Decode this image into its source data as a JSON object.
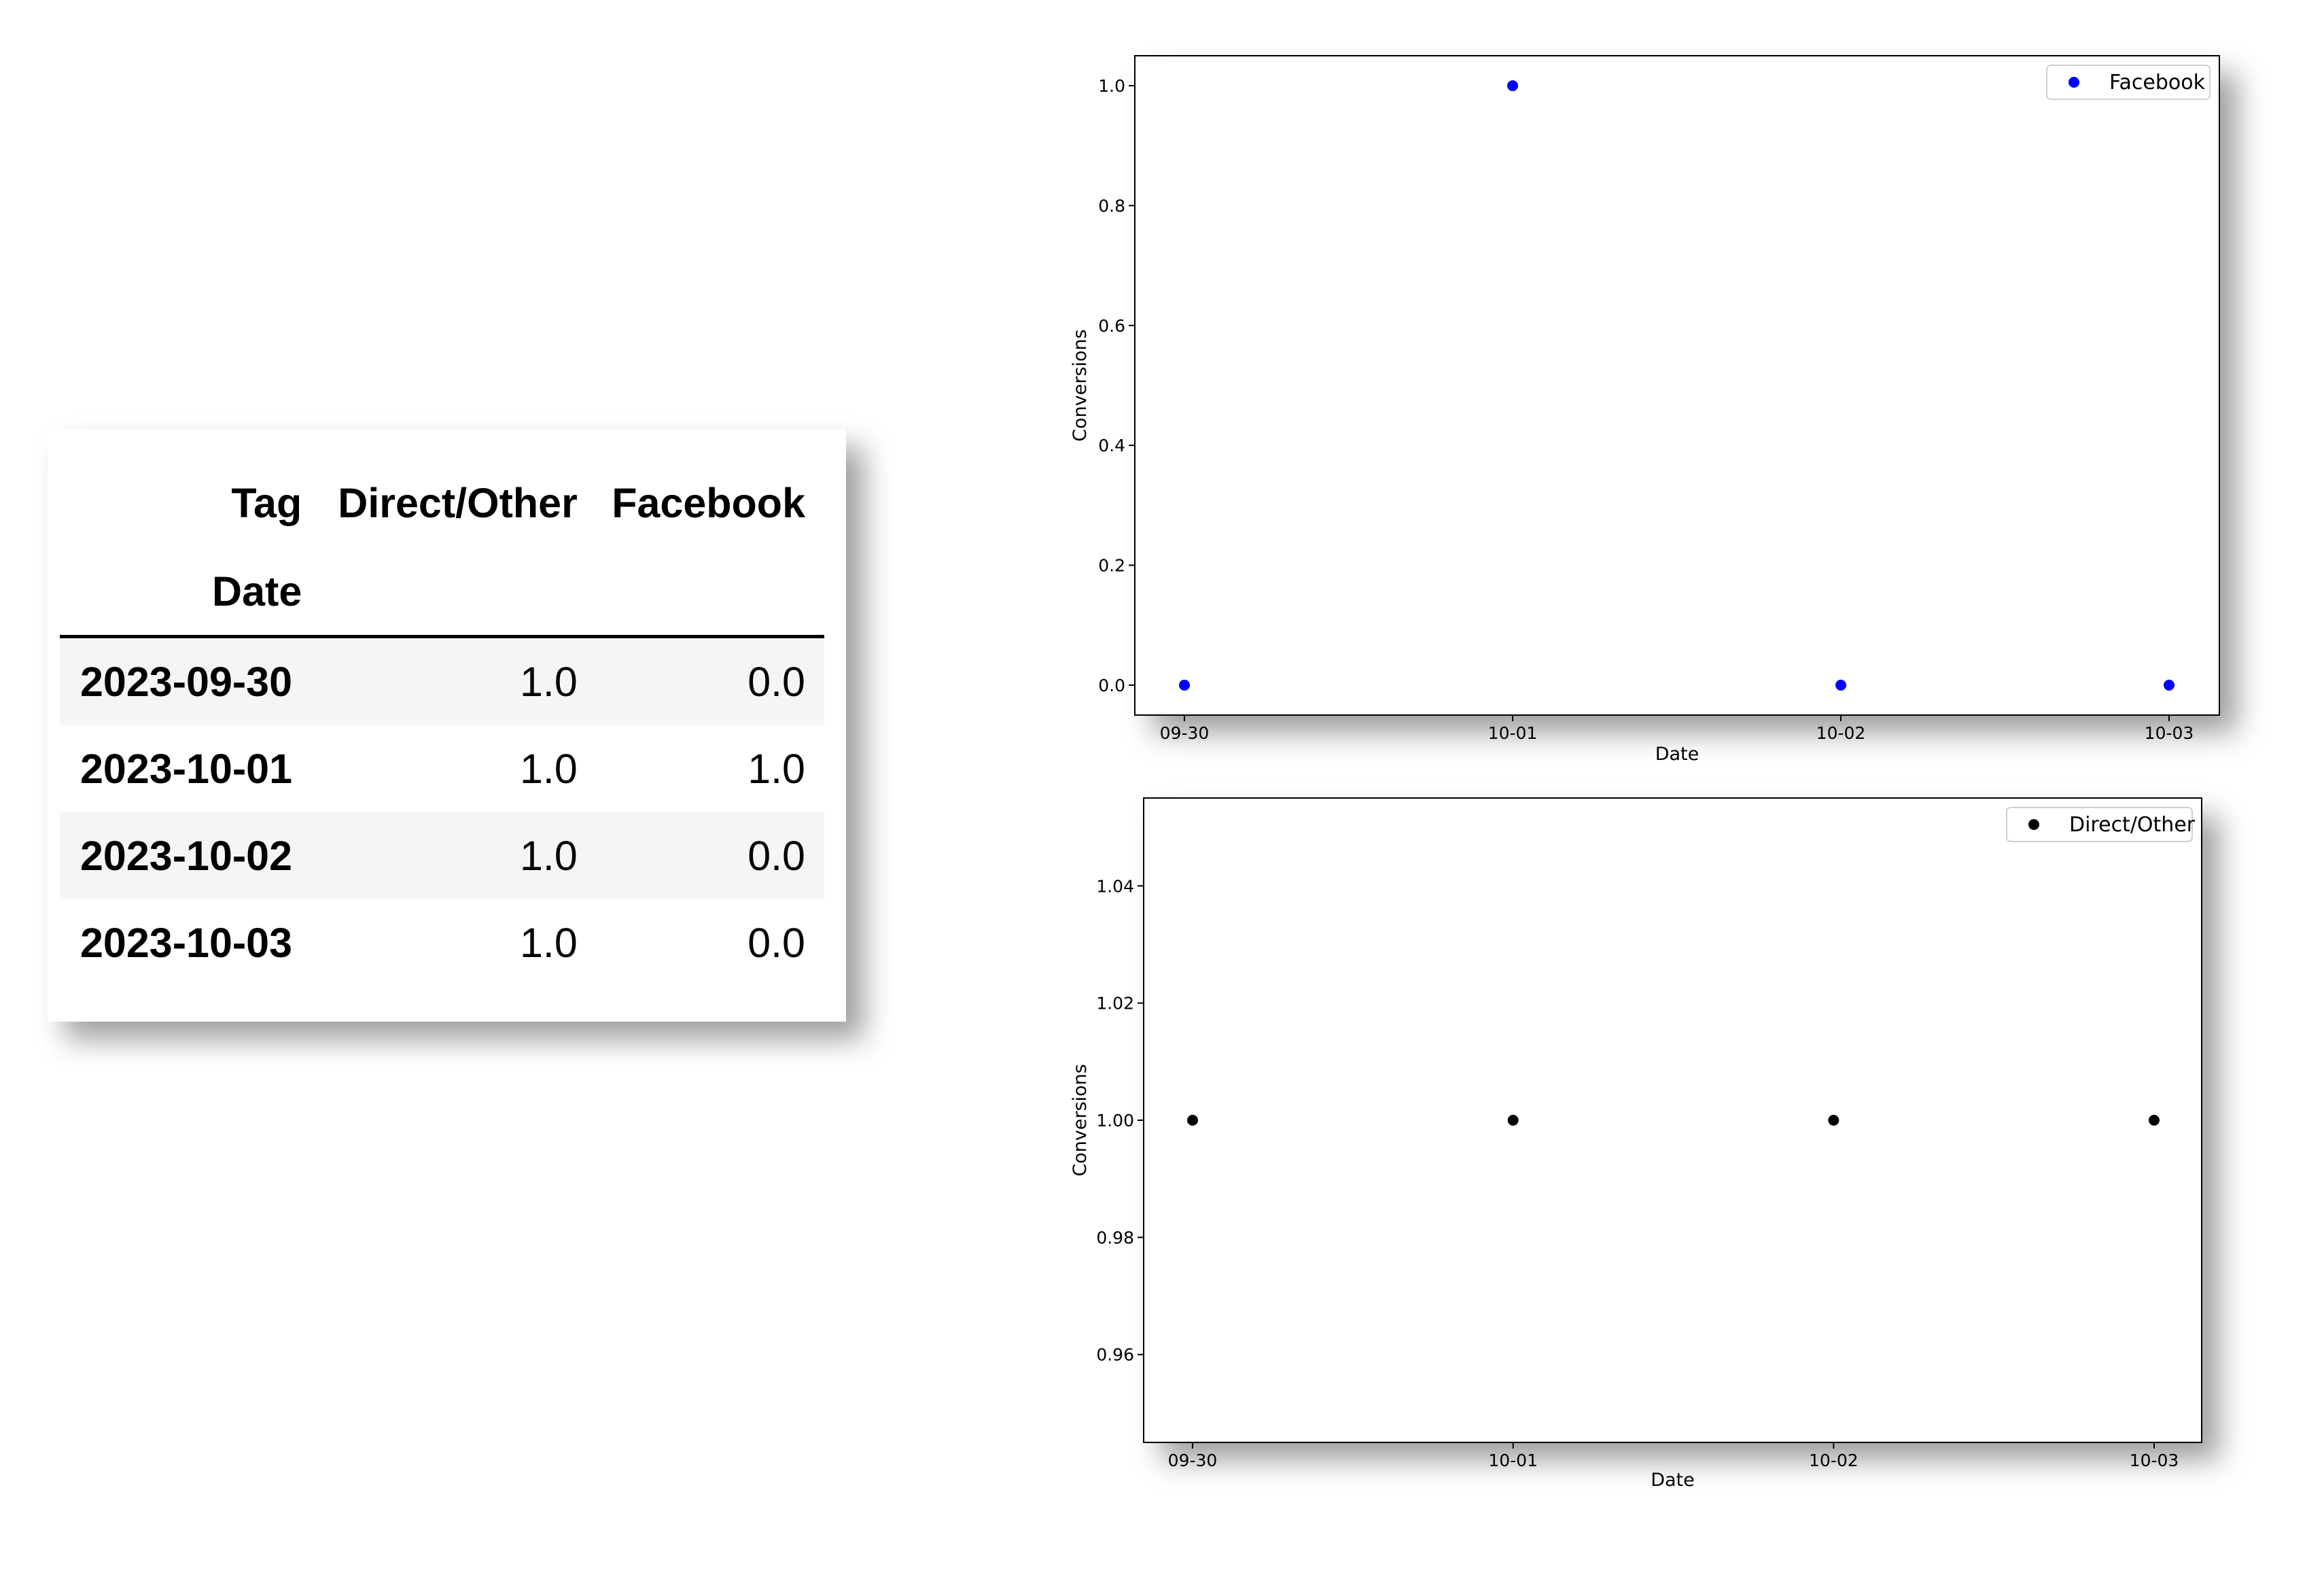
{
  "table": {
    "header_row1": [
      "Tag",
      "Direct/Other",
      "Facebook"
    ],
    "header_row2": [
      "Date",
      "",
      ""
    ],
    "rows": [
      {
        "date": "2023-09-30",
        "direct_other": "1.0",
        "facebook": "0.0"
      },
      {
        "date": "2023-10-01",
        "direct_other": "1.0",
        "facebook": "1.0"
      },
      {
        "date": "2023-10-02",
        "direct_other": "1.0",
        "facebook": "0.0"
      },
      {
        "date": "2023-10-03",
        "direct_other": "1.0",
        "facebook": "0.0"
      }
    ]
  },
  "chart_data": [
    {
      "type": "scatter",
      "x": [
        "09-30",
        "10-01",
        "10-02",
        "10-03"
      ],
      "series": [
        {
          "name": "Facebook",
          "values": [
            0.0,
            1.0,
            0.0,
            0.0
          ],
          "color": "#0000ff"
        }
      ],
      "xlabel": "Date",
      "ylabel": "Conversions",
      "ylim": [
        -0.05,
        1.05
      ],
      "yticks": [
        "0.0",
        "0.2",
        "0.4",
        "0.6",
        "0.8",
        "1.0"
      ],
      "legend": "top-right",
      "grid": false
    },
    {
      "type": "scatter",
      "x": [
        "09-30",
        "10-01",
        "10-02",
        "10-03"
      ],
      "series": [
        {
          "name": "Direct/Other",
          "values": [
            1.0,
            1.0,
            1.0,
            1.0
          ],
          "color": "#000000"
        }
      ],
      "xlabel": "Date",
      "ylabel": "Conversions",
      "ylim": [
        0.945,
        1.055
      ],
      "yticks": [
        "0.96",
        "0.98",
        "1.00",
        "1.02",
        "1.04"
      ],
      "legend": "top-right",
      "grid": false
    }
  ]
}
